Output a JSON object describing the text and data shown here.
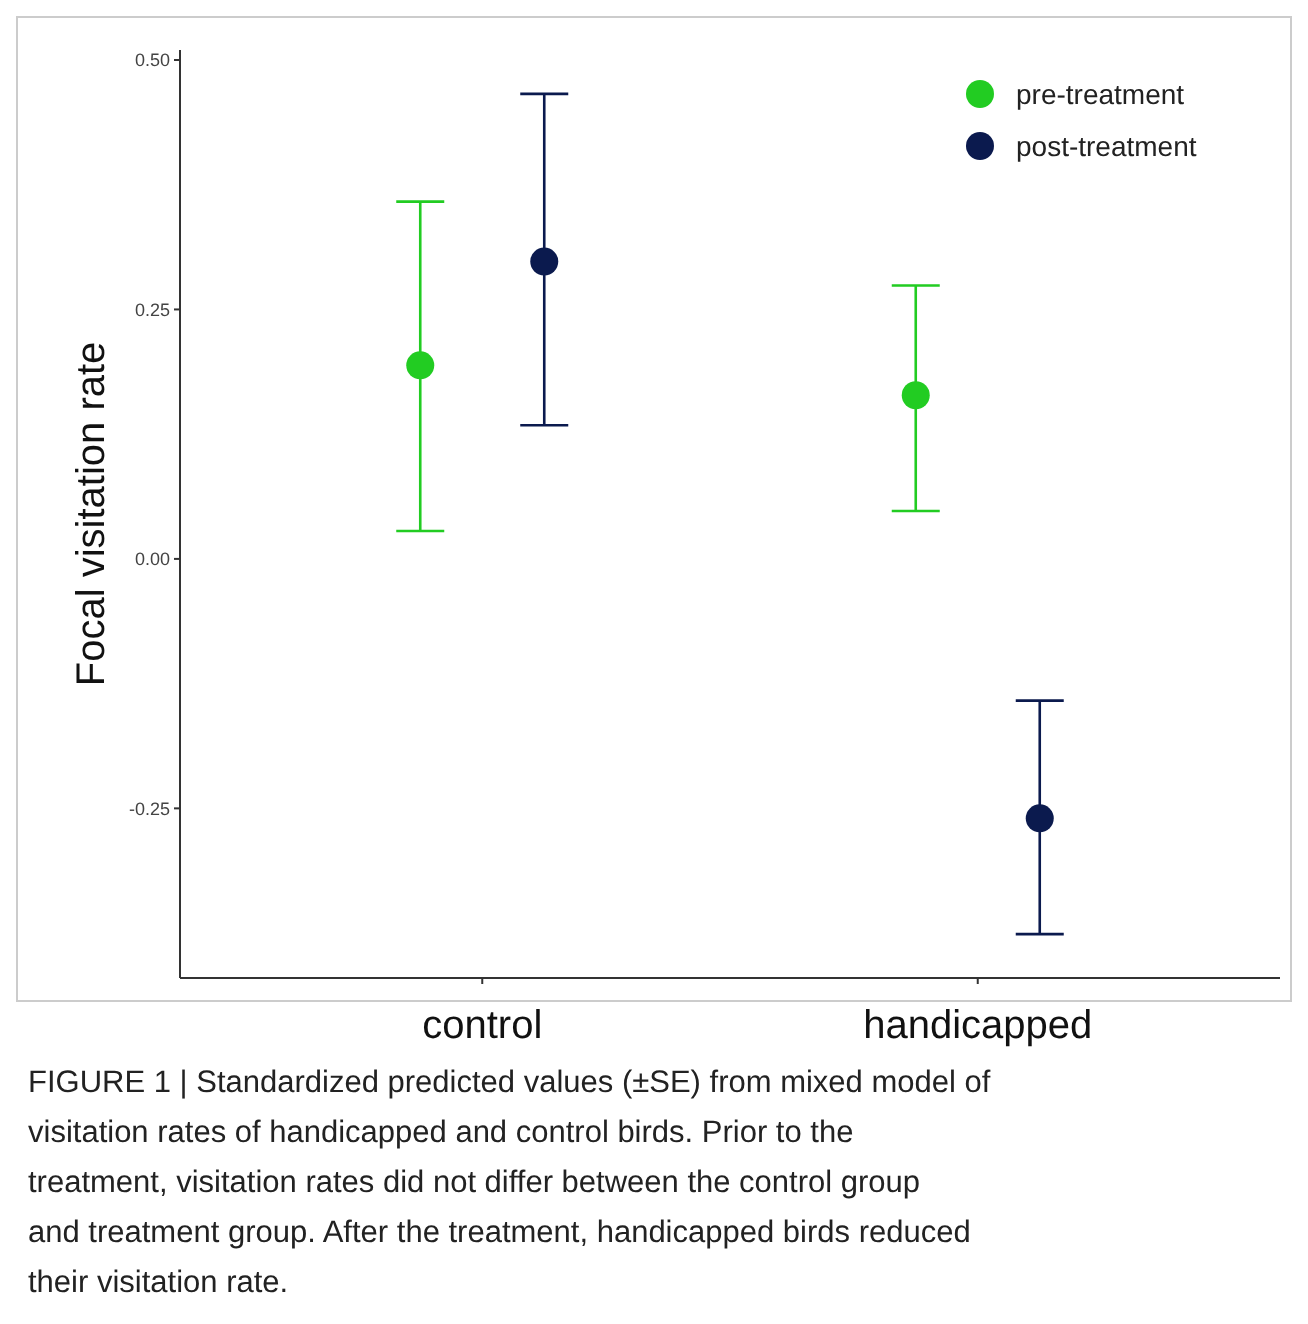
{
  "chart_data": {
    "type": "scatter",
    "ylabel": "Focal visitation rate",
    "categories": [
      "control",
      "handicapped"
    ],
    "ylim": [
      -0.42,
      0.51
    ],
    "yticks": [
      {
        "value": -0.25,
        "label": "-0.25"
      },
      {
        "value": 0,
        "label": "0.00"
      },
      {
        "value": 0.25,
        "label": "0.25"
      },
      {
        "value": 0.5,
        "label": "0.50"
      }
    ],
    "grid": false,
    "legend": "top right",
    "marker": "circle",
    "series": [
      {
        "name": "pre-treatment",
        "color": "#22cc22",
        "values": [
          0.194,
          0.164
        ],
        "errors": [
          [
            0.028,
            0.358
          ],
          [
            0.048,
            0.274
          ]
        ]
      },
      {
        "name": "post-treatment",
        "color": "#0b1a4e",
        "values": [
          0.298,
          -0.26
        ],
        "errors": [
          [
            0.134,
            0.466
          ],
          [
            -0.376,
            -0.142
          ]
        ]
      }
    ],
    "annotations": [
      "FIGURE 1 | Standardized predicted values (±SE) from mixed model of visitation rates of handicapped and control birds. Prior to the treatment, visitation rates did not differ between the control group and treatment group. After the treatment, handicapped birds reduced their visitation rate."
    ]
  }
}
